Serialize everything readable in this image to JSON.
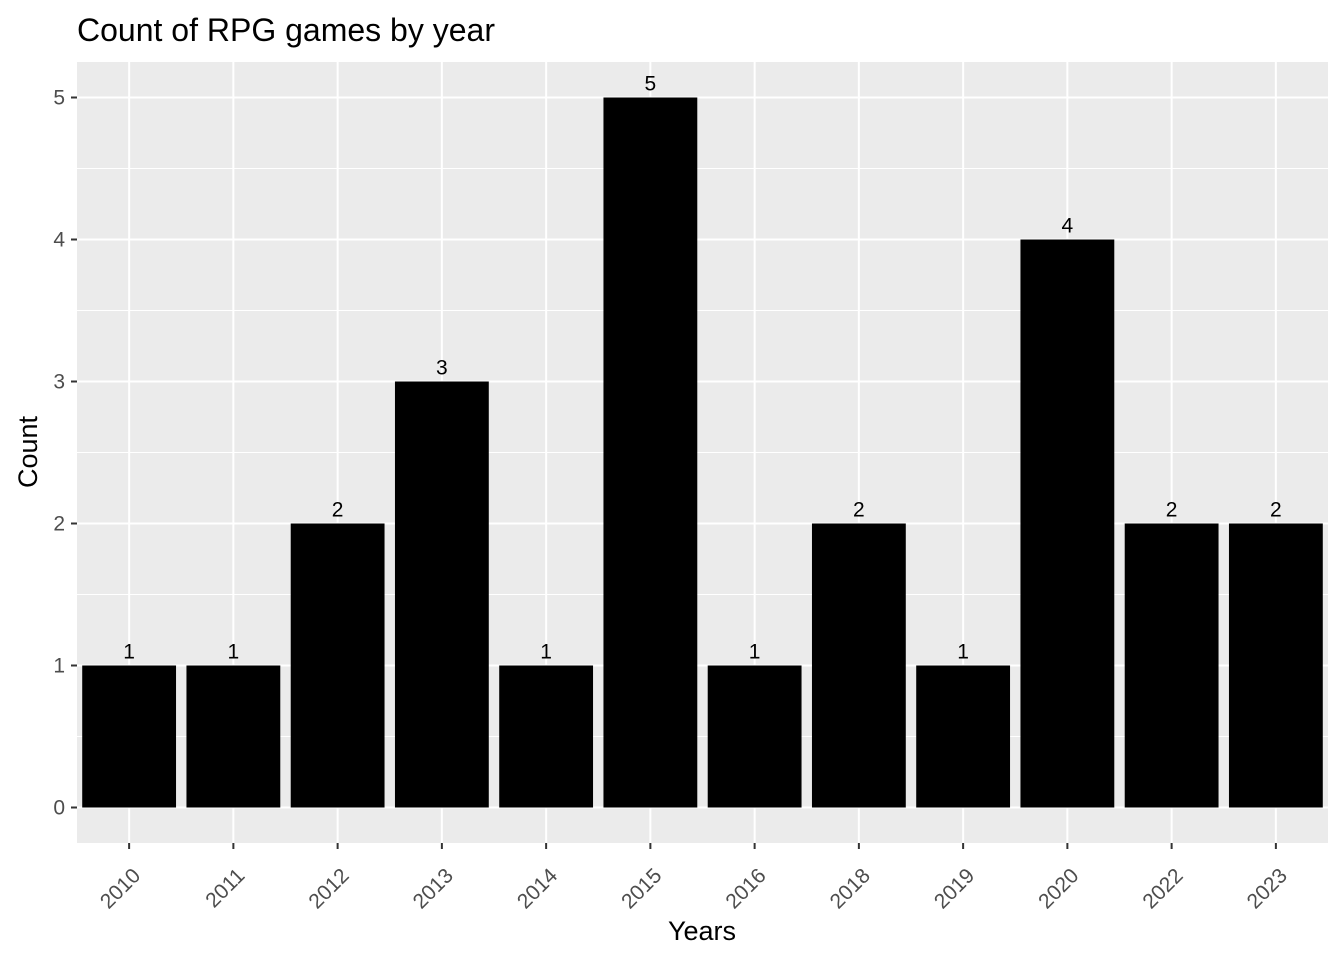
{
  "chart_data": {
    "type": "bar",
    "title": "Count of RPG games by year",
    "xlabel": "Years",
    "ylabel": "Count",
    "categories": [
      "2010",
      "2011",
      "2012",
      "2013",
      "2014",
      "2015",
      "2016",
      "2018",
      "2019",
      "2020",
      "2022",
      "2023"
    ],
    "values": [
      1,
      1,
      2,
      3,
      1,
      5,
      1,
      2,
      1,
      4,
      2,
      2
    ],
    "ylim": [
      0,
      5
    ],
    "yticks": [
      0,
      1,
      2,
      3,
      4,
      5
    ],
    "grid": true,
    "legend": "none",
    "colors": {
      "bar": "#000000",
      "panel": "#ebebeb",
      "grid": "#ffffff",
      "tick_text": "#4d4d4d"
    }
  }
}
